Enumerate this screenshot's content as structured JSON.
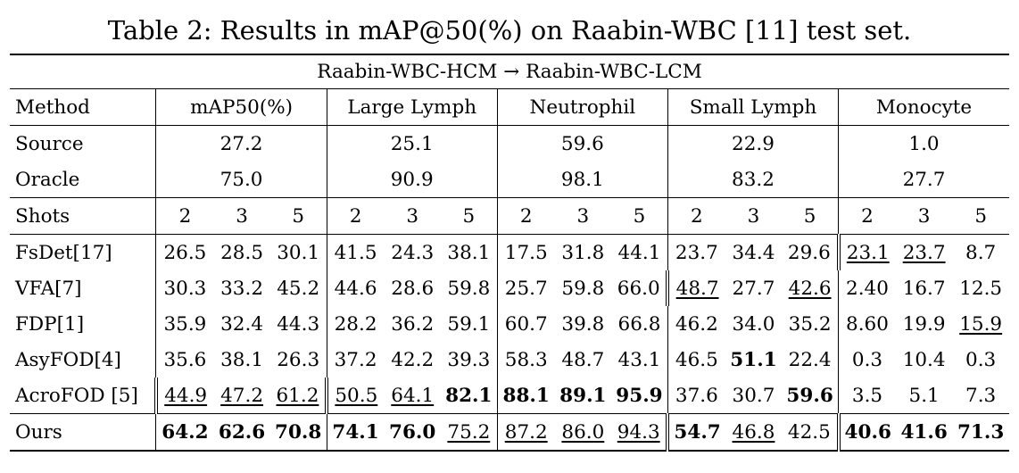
{
  "caption": "Table 2: Results in mAP@50(%) on Raabin-WBC [11] test set.",
  "setting": "Raabin-WBC-HCM → Raabin-WBC-LCM",
  "header": {
    "method": "Method",
    "groups": [
      "mAP50(%)",
      "Large Lymph",
      "Neutrophil",
      "Small Lymph",
      "Monocyte"
    ]
  },
  "baselines": [
    {
      "method": "Source",
      "values": [
        "27.2",
        "25.1",
        "59.6",
        "22.9",
        "1.0"
      ]
    },
    {
      "method": "Oracle",
      "values": [
        "75.0",
        "90.9",
        "98.1",
        "83.2",
        "27.7"
      ]
    }
  ],
  "shots": {
    "label": "Shots",
    "values": [
      "2",
      "3",
      "5",
      "2",
      "3",
      "5",
      "2",
      "3",
      "5",
      "2",
      "3",
      "5",
      "2",
      "3",
      "5"
    ]
  },
  "methods": [
    {
      "method": "FsDet[17]",
      "values": [
        "26.5",
        "28.5",
        "30.1",
        "41.5",
        "24.3",
        "38.1",
        "17.5",
        "31.8",
        "44.1",
        "23.7",
        "34.4",
        "29.6",
        "23.1",
        "23.7",
        "8.7"
      ]
    },
    {
      "method": "VFA[7]",
      "values": [
        "30.3",
        "33.2",
        "45.2",
        "44.6",
        "28.6",
        "59.8",
        "25.7",
        "59.8",
        "66.0",
        "48.7",
        "27.7",
        "42.6",
        "2.40",
        "16.7",
        "12.5"
      ]
    },
    {
      "method": "FDP[1]",
      "values": [
        "35.9",
        "32.4",
        "44.3",
        "28.2",
        "36.2",
        "59.1",
        "60.7",
        "39.8",
        "66.8",
        "46.2",
        "34.0",
        "35.2",
        "8.60",
        "19.9",
        "15.9"
      ]
    },
    {
      "method": "AsyFOD[4]",
      "values": [
        "35.6",
        "38.1",
        "26.3",
        "37.2",
        "42.2",
        "39.3",
        "58.3",
        "48.7",
        "43.1",
        "46.5",
        "51.1",
        "22.4",
        "0.3",
        "10.4",
        "0.3"
      ]
    },
    {
      "method": "AcroFOD [5]",
      "values": [
        "44.9",
        "47.2",
        "61.2",
        "50.5",
        "64.1",
        "82.1",
        "88.1",
        "89.1",
        "95.9",
        "37.6",
        "30.7",
        "59.6",
        "3.5",
        "5.1",
        "7.3"
      ]
    }
  ],
  "ours": {
    "method": "Ours",
    "values": [
      "64.2",
      "62.6",
      "70.8",
      "74.1",
      "76.0",
      "75.2",
      "87.2",
      "86.0",
      "94.3",
      "54.7",
      "46.8",
      "42.5",
      "40.6",
      "41.6",
      "71.3"
    ]
  }
}
